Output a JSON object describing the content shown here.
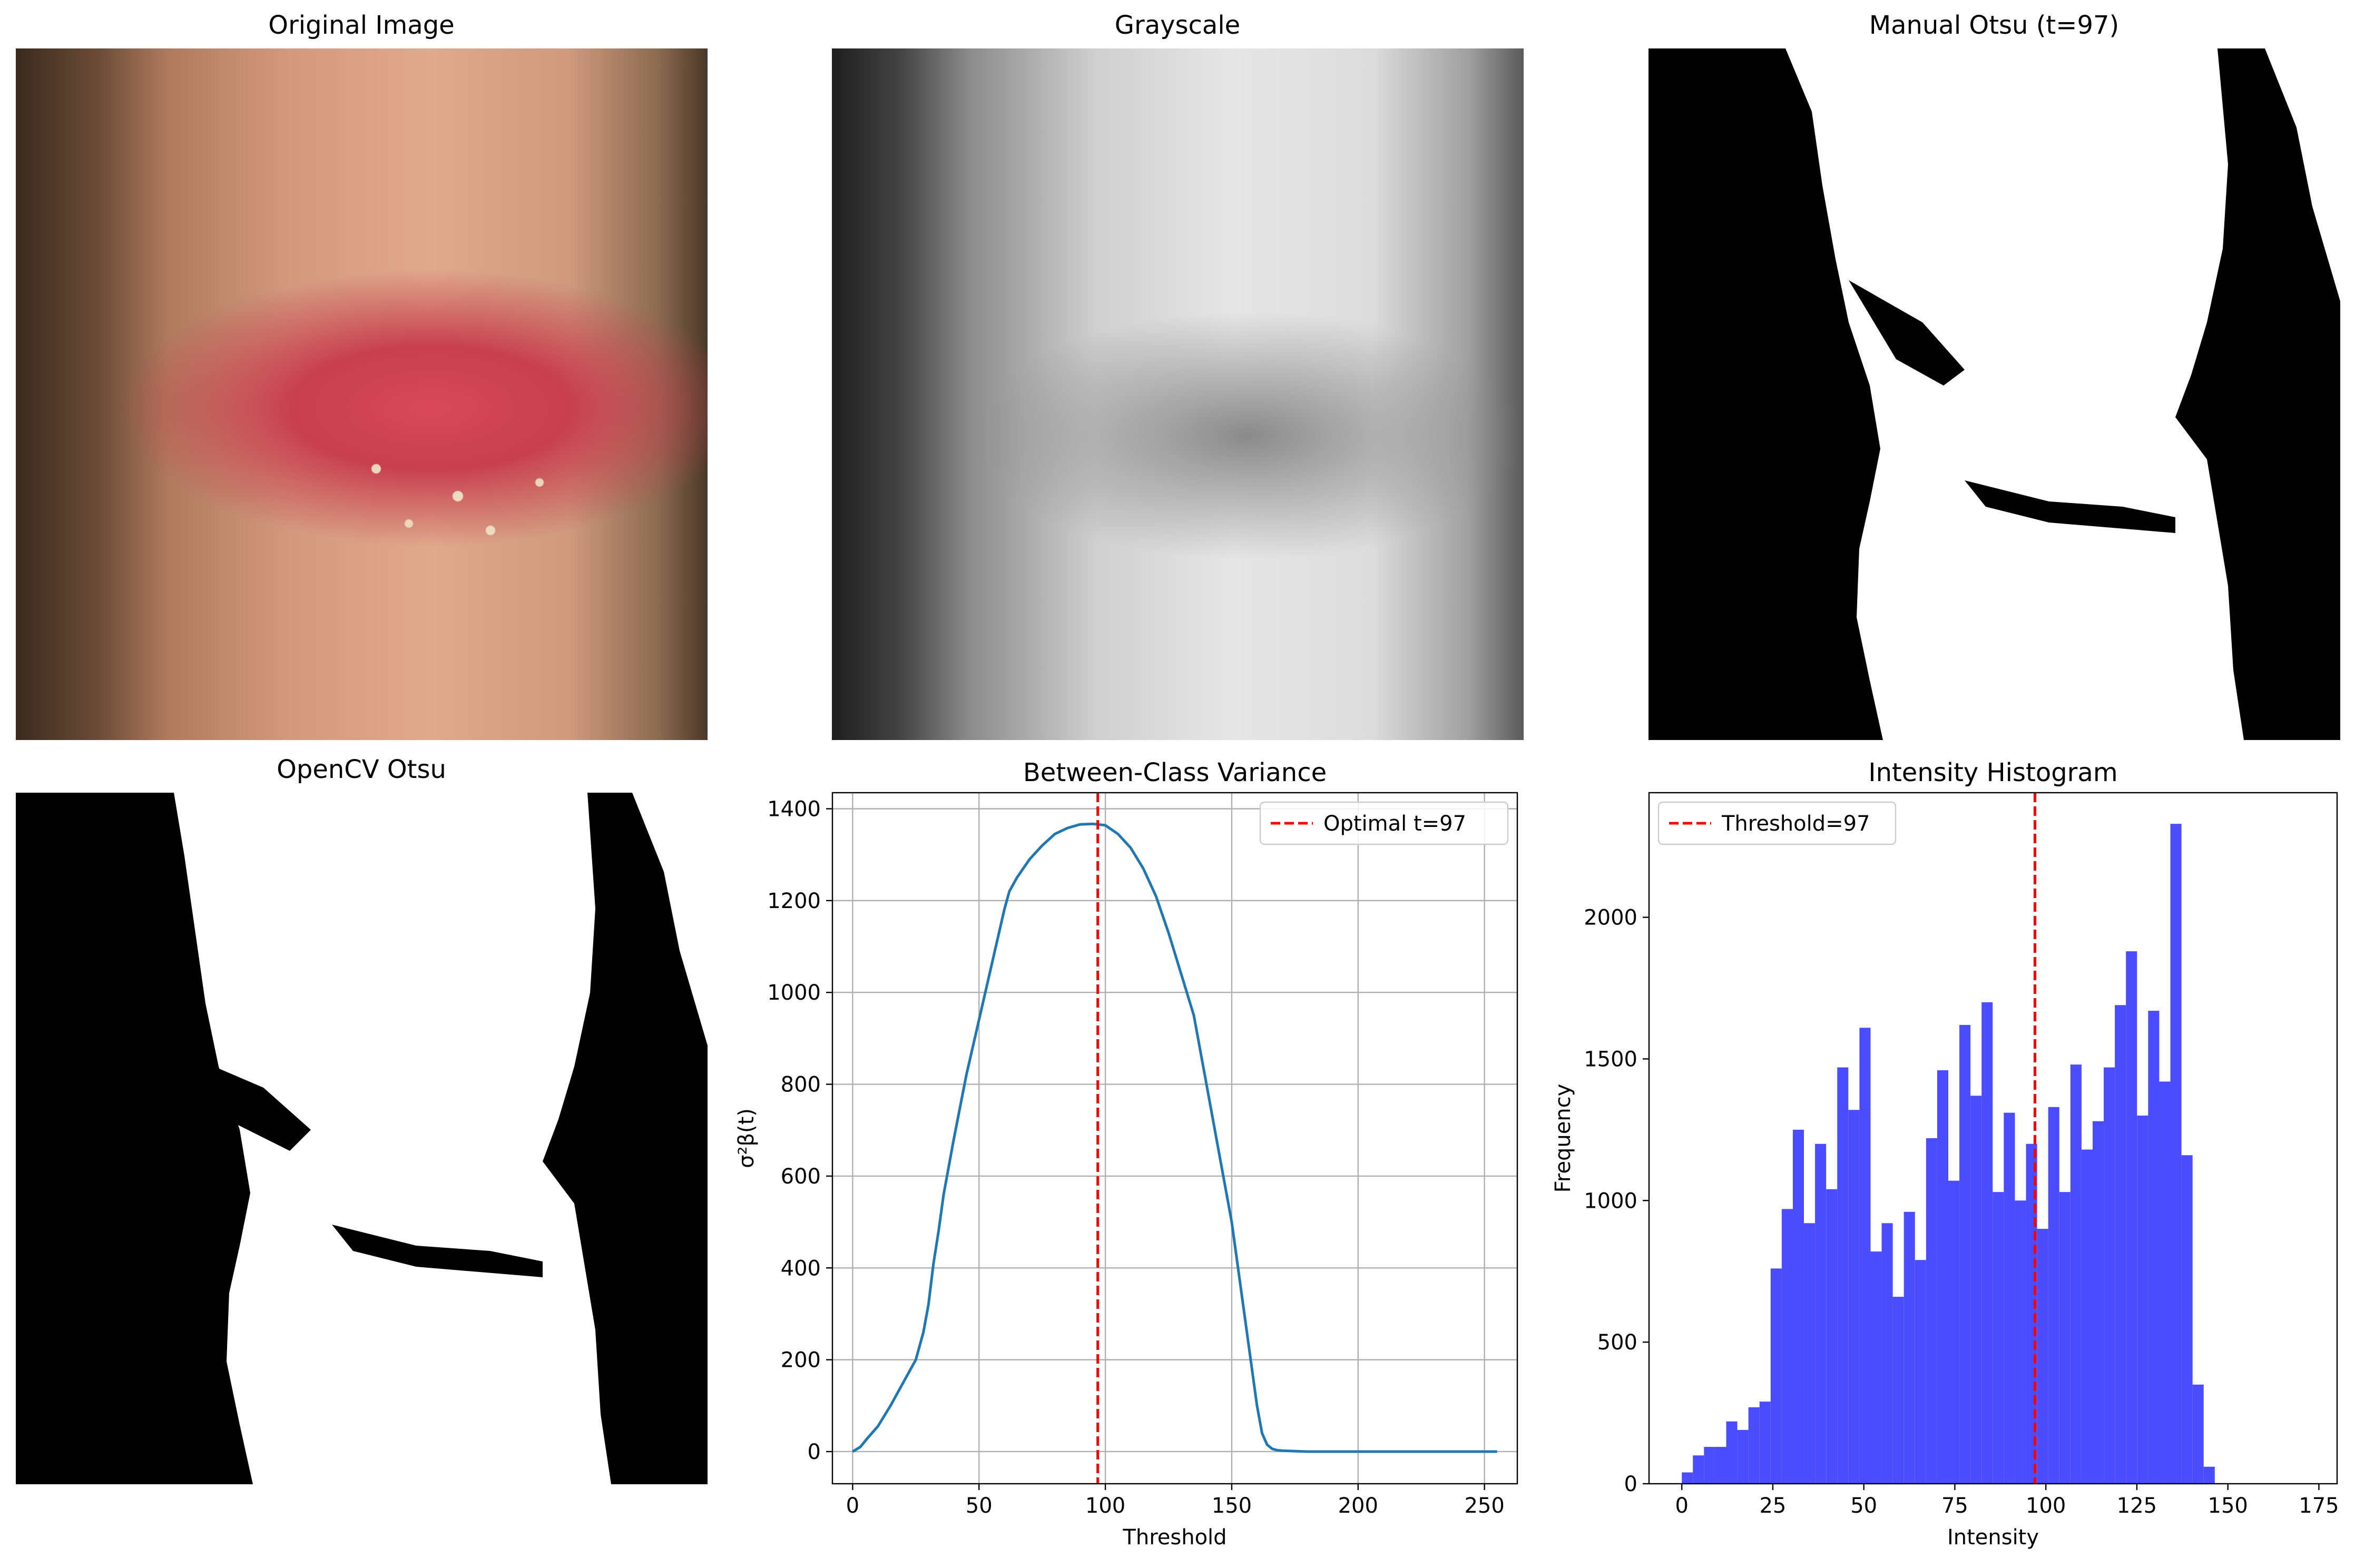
{
  "panels": {
    "original": {
      "title": "Original Image"
    },
    "grayscale": {
      "title": "Grayscale"
    },
    "manual": {
      "title": "Manual Otsu (t=97)"
    },
    "opencv": {
      "title": "OpenCV Otsu"
    }
  },
  "chart_data": [
    {
      "type": "line",
      "title": "Between-Class Variance",
      "xlabel": "Threshold",
      "ylabel": "σ²β(t)",
      "xlim": [
        -8,
        263
      ],
      "ylim": [
        -70,
        1435
      ],
      "xticks": [
        0,
        50,
        100,
        150,
        200,
        250
      ],
      "yticks": [
        0,
        200,
        400,
        600,
        800,
        1000,
        1200,
        1400
      ],
      "grid": true,
      "legend": {
        "position": "top-right",
        "label": "Optimal t=97"
      },
      "threshold": 97,
      "colors": {
        "line": "#1f77b4",
        "threshold": "#ff0000"
      },
      "series": [
        {
          "x": [
            0,
            3,
            6,
            10,
            15,
            20,
            25,
            28,
            30,
            32,
            34,
            36,
            40,
            45,
            50,
            55,
            60,
            62,
            65,
            70,
            75,
            80,
            85,
            90,
            95,
            97,
            100,
            105,
            110,
            115,
            120,
            125,
            130,
            135,
            140,
            145,
            150,
            155,
            158,
            160,
            162,
            164,
            166,
            168,
            170,
            175,
            180,
            200,
            225,
            255
          ],
          "y": [
            0,
            10,
            30,
            55,
            100,
            150,
            200,
            260,
            320,
            410,
            480,
            560,
            680,
            820,
            940,
            1060,
            1180,
            1220,
            1250,
            1290,
            1320,
            1345,
            1358,
            1366,
            1367,
            1366,
            1364,
            1345,
            1315,
            1270,
            1210,
            1130,
            1040,
            950,
            800,
            650,
            500,
            300,
            180,
            100,
            40,
            15,
            6,
            3,
            2,
            1,
            0,
            0,
            0,
            0
          ]
        }
      ]
    },
    {
      "type": "bar",
      "title": "Intensity Histogram",
      "xlabel": "Intensity",
      "ylabel": "Frequency",
      "xlim": [
        -9,
        180
      ],
      "ylim": [
        0,
        2440
      ],
      "xticks": [
        0,
        25,
        50,
        75,
        100,
        125,
        150,
        175
      ],
      "yticks": [
        0,
        500,
        1000,
        1500,
        2000
      ],
      "grid": false,
      "legend": {
        "position": "top-left",
        "label": "Threshold=97"
      },
      "threshold": 97,
      "colors": {
        "bar": "#4c4cff",
        "threshold": "#ff0000"
      },
      "bin_start": 0,
      "bin_width": 3.05,
      "values": [
        40,
        100,
        130,
        130,
        220,
        190,
        270,
        290,
        760,
        970,
        1250,
        920,
        1200,
        1040,
        1470,
        1320,
        1610,
        820,
        920,
        660,
        960,
        790,
        1220,
        1460,
        1070,
        1620,
        1370,
        1700,
        1030,
        1310,
        1000,
        1200,
        900,
        1330,
        1030,
        1480,
        1180,
        1280,
        1470,
        1690,
        1880,
        1300,
        1670,
        1420,
        2330,
        1160,
        350,
        60
      ]
    }
  ]
}
